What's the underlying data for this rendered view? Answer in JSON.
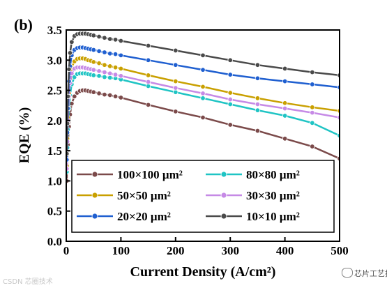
{
  "chart_data": {
    "type": "line",
    "panel_label": "(b)",
    "xlabel": "Current Density (A/cm²)",
    "ylabel": "EQE (%)",
    "xlim": [
      0,
      500
    ],
    "ylim": [
      0,
      3.5
    ],
    "xticks": [
      "0",
      "100",
      "200",
      "300",
      "400",
      "500"
    ],
    "yticks": [
      "0.0",
      "0.5",
      "1.0",
      "1.5",
      "2.0",
      "2.5",
      "3.0",
      "3.5"
    ],
    "legend_placement": "lower-left",
    "x": [
      1,
      2,
      3,
      5,
      7,
      10,
      15,
      20,
      25,
      30,
      35,
      40,
      45,
      50,
      60,
      70,
      80,
      90,
      100,
      150,
      200,
      250,
      300,
      350,
      400,
      450,
      500
    ],
    "series": [
      {
        "name": "100×100 μm²",
        "color": "#7b4a4a",
        "values": [
          1.0,
          1.35,
          1.6,
          1.9,
          2.1,
          2.28,
          2.4,
          2.46,
          2.49,
          2.5,
          2.5,
          2.49,
          2.48,
          2.47,
          2.45,
          2.43,
          2.42,
          2.4,
          2.38,
          2.26,
          2.15,
          2.05,
          1.93,
          1.83,
          1.7,
          1.57,
          1.37
        ]
      },
      {
        "name": "80×80 μm²",
        "color": "#1fc4c4",
        "values": [
          1.15,
          1.55,
          1.85,
          2.2,
          2.42,
          2.6,
          2.72,
          2.77,
          2.78,
          2.78,
          2.78,
          2.77,
          2.76,
          2.75,
          2.74,
          2.72,
          2.71,
          2.7,
          2.68,
          2.57,
          2.47,
          2.37,
          2.27,
          2.17,
          2.08,
          1.96,
          1.75
        ]
      },
      {
        "name": "50×50 μm²",
        "color": "#c9a000",
        "values": [
          1.25,
          1.7,
          2.05,
          2.45,
          2.7,
          2.88,
          2.98,
          3.02,
          3.03,
          3.03,
          3.02,
          3.0,
          2.99,
          2.97,
          2.95,
          2.92,
          2.9,
          2.88,
          2.86,
          2.75,
          2.65,
          2.56,
          2.46,
          2.37,
          2.29,
          2.22,
          2.16
        ]
      },
      {
        "name": "30×30 μm²",
        "color": "#c68ae6",
        "values": [
          1.2,
          1.65,
          2.0,
          2.4,
          2.62,
          2.78,
          2.86,
          2.88,
          2.88,
          2.88,
          2.87,
          2.86,
          2.85,
          2.84,
          2.82,
          2.8,
          2.78,
          2.76,
          2.74,
          2.64,
          2.54,
          2.45,
          2.35,
          2.27,
          2.2,
          2.13,
          2.05
        ]
      },
      {
        "name": "20×20 μm²",
        "color": "#1f5fd0",
        "values": [
          1.35,
          1.8,
          2.2,
          2.65,
          2.9,
          3.08,
          3.17,
          3.2,
          3.21,
          3.21,
          3.2,
          3.19,
          3.18,
          3.17,
          3.15,
          3.13,
          3.11,
          3.1,
          3.08,
          3.0,
          2.92,
          2.84,
          2.76,
          2.7,
          2.65,
          2.6,
          2.55
        ]
      },
      {
        "name": "10×10 μm²",
        "color": "#4a4a4a",
        "values": [
          1.45,
          1.95,
          2.4,
          2.85,
          3.12,
          3.3,
          3.4,
          3.43,
          3.44,
          3.44,
          3.44,
          3.43,
          3.42,
          3.41,
          3.39,
          3.37,
          3.35,
          3.34,
          3.32,
          3.24,
          3.16,
          3.08,
          3.0,
          2.92,
          2.86,
          2.8,
          2.75
        ]
      }
    ]
  },
  "watermark_left": "CSDN 芯圈技术",
  "watermark_right": "芯片工艺技术"
}
